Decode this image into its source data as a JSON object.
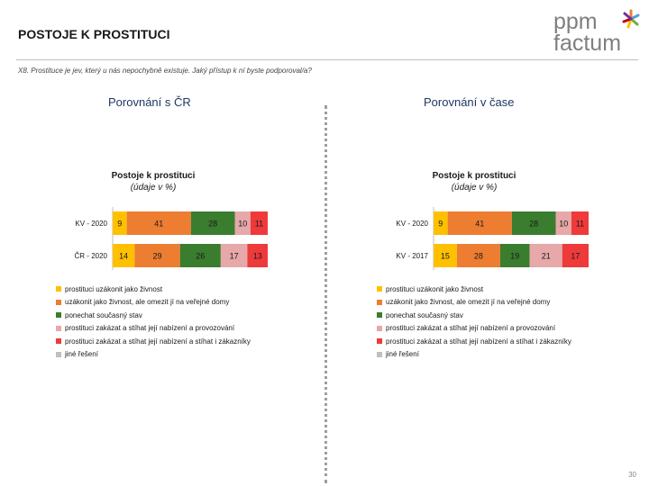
{
  "header": {
    "title": "POSTOJE K PROSTITUCI",
    "question": "X8. Prostituce je jev, který u nás nepochybně existuje. Jaký přístup k ní byste podporoval/a?",
    "logo_top": "ppm",
    "logo_bottom": "factum"
  },
  "sections": {
    "left": "Porovnání s ČR",
    "right": "Porovnání v čase"
  },
  "colors": [
    "#ffc000",
    "#ed7d31",
    "#3a7d2e",
    "#e6a8a8",
    "#ee3a3a",
    "#bfbfbf"
  ],
  "chart_data": [
    {
      "type": "bar",
      "stacked": true,
      "orientation": "horizontal",
      "title": "Postoje k prostituci",
      "subtitle": "(údaje v %)",
      "categories": [
        "KV - 2020",
        "ČR - 2020"
      ],
      "series": [
        {
          "name": "prostituci uzákonit jako živnost",
          "values": [
            9,
            14
          ]
        },
        {
          "name": "uzákonit jako živnost, ale omezit jí na veřejné domy",
          "values": [
            41,
            29
          ]
        },
        {
          "name": "ponechat současný stav",
          "values": [
            28,
            26
          ]
        },
        {
          "name": "prostituci zakázat a stíhat její nabízení a provozování",
          "values": [
            10,
            17
          ]
        },
        {
          "name": "prostituci zakázat a stíhat její nabízení a stíhat i zákazníky",
          "values": [
            11,
            13
          ]
        },
        {
          "name": "jiné řešení",
          "values": [
            0,
            0
          ]
        }
      ]
    },
    {
      "type": "bar",
      "stacked": true,
      "orientation": "horizontal",
      "title": "Postoje k prostituci",
      "subtitle": "(údaje v %)",
      "categories": [
        "KV - 2020",
        "KV - 2017"
      ],
      "series": [
        {
          "name": "prostituci uzákonit jako živnost",
          "values": [
            9,
            15
          ]
        },
        {
          "name": "uzákonit jako živnost, ale omezit jí na veřejné domy",
          "values": [
            41,
            28
          ]
        },
        {
          "name": "ponechat současný stav",
          "values": [
            28,
            19
          ]
        },
        {
          "name": "prostituci zakázat a stíhat její nabízení a provozování",
          "values": [
            10,
            21
          ]
        },
        {
          "name": "prostituci zakázat a stíhat její nabízení a stíhat i zákazníky",
          "values": [
            11,
            17
          ]
        },
        {
          "name": "jiné řešení",
          "values": [
            0,
            0
          ]
        }
      ]
    }
  ],
  "page_number": "30"
}
